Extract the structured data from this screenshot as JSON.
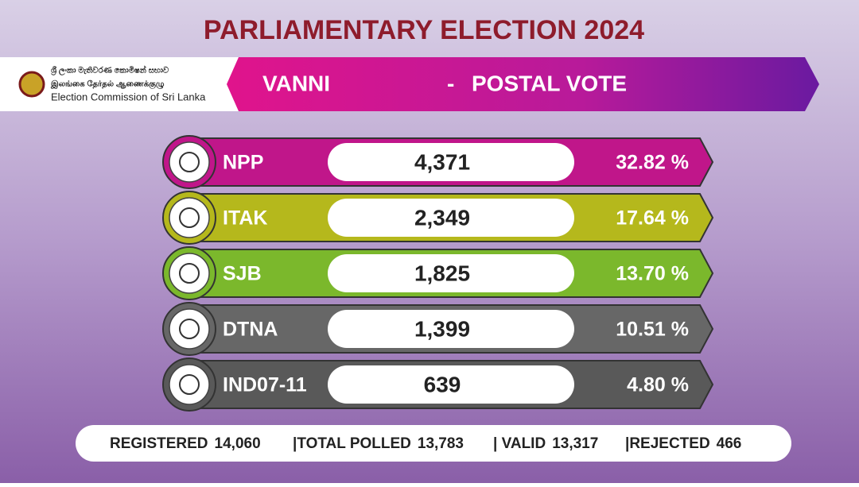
{
  "header": {
    "title": "PARLIAMENTARY ELECTION 2024",
    "commission": [
      "ශ්‍රී ලංකා මැතිවරණ කොමිෂන් සභාව",
      "இலங்கை தேர்தல் ஆணைக்குழு",
      "Election Commission of Sri Lanka"
    ],
    "district": "VANNI",
    "separator": "-",
    "vote_type": "POSTAL VOTE"
  },
  "rows": [
    {
      "party": "NPP",
      "votes": "4,371",
      "percent": "32.82 %"
    },
    {
      "party": "ITAK",
      "votes": "2,349",
      "percent": "17.64 %"
    },
    {
      "party": "SJB",
      "votes": "1,825",
      "percent": "13.70 %"
    },
    {
      "party": "DTNA",
      "votes": "1,399",
      "percent": "10.51 %"
    },
    {
      "party": "IND07-11",
      "votes": "639",
      "percent": "4.80 %"
    }
  ],
  "footer": [
    {
      "label": "REGISTERED",
      "value": "14,060"
    },
    {
      "label": "|TOTAL POLLED",
      "value": "13,783"
    },
    {
      "label": "| VALID",
      "value": "13,317"
    },
    {
      "label": "|REJECTED",
      "value": "466"
    }
  ]
}
